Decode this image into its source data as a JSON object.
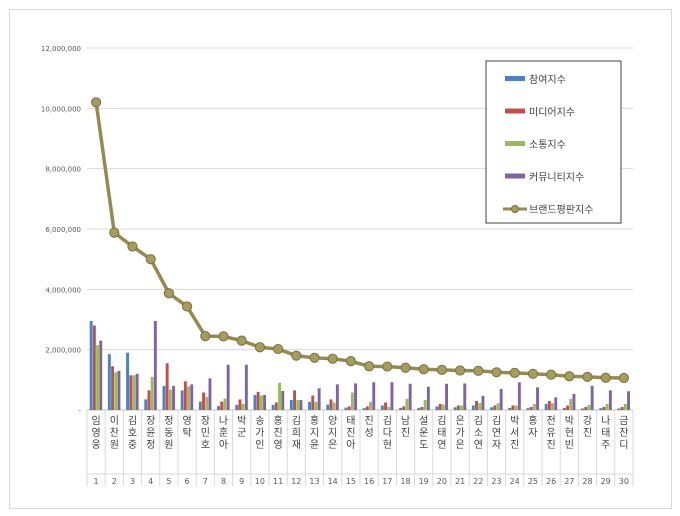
{
  "chart_data": {
    "type": "bar",
    "categories": [
      "임영웅",
      "이찬원",
      "김호중",
      "장윤정",
      "정동원",
      "영탁",
      "장민호",
      "나훈아",
      "박군",
      "송가인",
      "홍진영",
      "김희재",
      "홍지윤",
      "양지은",
      "태진아",
      "진성",
      "김다현",
      "남진",
      "설운도",
      "김태연",
      "은가은",
      "김소연",
      "김연자",
      "박서진",
      "홍자",
      "전유진",
      "박현빈",
      "강진",
      "나태주",
      "금잔디"
    ],
    "numbers": [
      "1",
      "2",
      "3",
      "4",
      "5",
      "6",
      "7",
      "8",
      "9",
      "10",
      "11",
      "12",
      "13",
      "14",
      "15",
      "16",
      "17",
      "18",
      "19",
      "20",
      "21",
      "22",
      "23",
      "24",
      "25",
      "26",
      "27",
      "28",
      "29",
      "30"
    ],
    "ylim": [
      0,
      12000000
    ],
    "yticks": [
      0,
      2000000,
      4000000,
      6000000,
      8000000,
      10000000,
      12000000
    ],
    "ytick_labels": [
      "-",
      "2,000,000",
      "4,000,000",
      "6,000,000",
      "8,000,000",
      "10,000,000",
      "12,000,000"
    ],
    "legend_position": "top-right",
    "series": [
      {
        "name": "참여지수",
        "color": "#4f81bd",
        "values": [
          2950000,
          1850000,
          1900000,
          350000,
          800000,
          650000,
          280000,
          130000,
          170000,
          500000,
          170000,
          330000,
          270000,
          180000,
          80000,
          60000,
          150000,
          70000,
          70000,
          120000,
          90000,
          150000,
          90000,
          70000,
          60000,
          200000,
          70000,
          50000,
          60000,
          50000
        ]
      },
      {
        "name": "미디어지수",
        "color": "#c0504d",
        "values": [
          2800000,
          1450000,
          1150000,
          650000,
          1550000,
          950000,
          580000,
          280000,
          350000,
          600000,
          250000,
          650000,
          480000,
          350000,
          120000,
          120000,
          250000,
          120000,
          100000,
          200000,
          150000,
          300000,
          150000,
          150000,
          100000,
          300000,
          150000,
          100000,
          100000,
          100000
        ]
      },
      {
        "name": "소통지수",
        "color": "#9bbb59",
        "values": [
          2150000,
          1250000,
          1150000,
          1100000,
          680000,
          780000,
          430000,
          380000,
          200000,
          480000,
          900000,
          330000,
          270000,
          250000,
          580000,
          270000,
          100000,
          370000,
          330000,
          180000,
          150000,
          230000,
          220000,
          150000,
          200000,
          220000,
          370000,
          170000,
          200000,
          200000
        ]
      },
      {
        "name": "커뮤니티지수",
        "color": "#8064a2",
        "values": [
          2300000,
          1300000,
          1200000,
          2950000,
          800000,
          850000,
          1050000,
          1500000,
          1500000,
          500000,
          630000,
          330000,
          720000,
          850000,
          880000,
          920000,
          920000,
          870000,
          770000,
          870000,
          880000,
          470000,
          700000,
          920000,
          750000,
          420000,
          530000,
          800000,
          650000,
          620000
        ]
      }
    ],
    "line_series": {
      "name": "브랜드평판지수",
      "color": "#948a54",
      "values": [
        10200000,
        5880000,
        5420000,
        5000000,
        3870000,
        3430000,
        2450000,
        2440000,
        2300000,
        2080000,
        2020000,
        1800000,
        1730000,
        1700000,
        1620000,
        1450000,
        1440000,
        1400000,
        1350000,
        1330000,
        1310000,
        1300000,
        1250000,
        1230000,
        1200000,
        1170000,
        1120000,
        1100000,
        1070000,
        1060000
      ]
    }
  }
}
